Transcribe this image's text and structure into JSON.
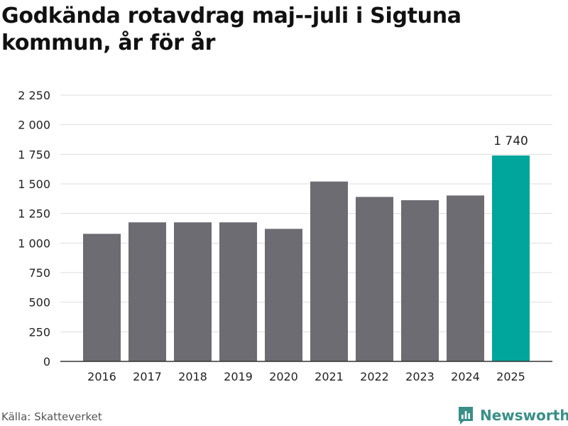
{
  "chart_data": {
    "type": "bar",
    "title": "Godkända rotavdrag maj--juli i Sigtuna kommun, år för år",
    "categories": [
      "2016",
      "2017",
      "2018",
      "2019",
      "2020",
      "2021",
      "2022",
      "2023",
      "2024",
      "2025"
    ],
    "values": [
      1078,
      1175,
      1175,
      1175,
      1120,
      1520,
      1390,
      1362,
      1402,
      1740
    ],
    "highlight_index": 9,
    "highlight_label": "1 740",
    "ylim": [
      0,
      2250
    ],
    "yticks": [
      0,
      250,
      500,
      750,
      1000,
      1250,
      1500,
      1750,
      2000,
      2250
    ],
    "ytick_labels": [
      "0",
      "250",
      "500",
      "750",
      "1 000",
      "1 250",
      "1 500",
      "1 750",
      "2 000",
      "2 250"
    ],
    "xlabel": "",
    "ylabel": "",
    "grid": true,
    "colors": {
      "bar": "#6d6c72",
      "highlight": "#00a59b",
      "grid": "#dddddd",
      "axis": "#333333"
    }
  },
  "footer": {
    "source": "Källa: Skatteverket",
    "brand": "Newsworthy"
  },
  "icons": {
    "brand_icon": "newsworthy-logo-icon"
  }
}
